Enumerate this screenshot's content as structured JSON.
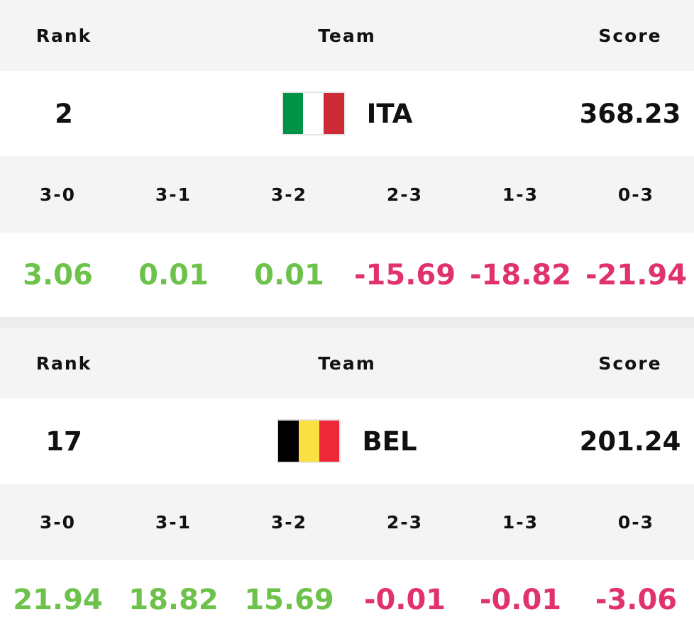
{
  "tables": [
    {
      "header": {
        "rank": "Rank",
        "team": "Team",
        "score": "Score"
      },
      "rank": 2,
      "team": "ITA",
      "score": 368.23,
      "outcomes": [
        "3-0",
        "3-1",
        "3-2",
        "2-3",
        "1-3",
        "0-3"
      ],
      "values": [
        3.06,
        0.01,
        0.01,
        -15.69,
        -18.82,
        -21.94
      ]
    },
    {
      "header": {
        "rank": "Rank",
        "team": "Team",
        "score": "Score"
      },
      "rank": 17,
      "team": "BEL",
      "score": 201.24,
      "outcomes": [
        "3-0",
        "3-1",
        "3-2",
        "2-3",
        "1-3",
        "0-3"
      ],
      "values": [
        21.94,
        18.82,
        15.69,
        -0.01,
        -0.01,
        -3.06
      ]
    }
  ]
}
